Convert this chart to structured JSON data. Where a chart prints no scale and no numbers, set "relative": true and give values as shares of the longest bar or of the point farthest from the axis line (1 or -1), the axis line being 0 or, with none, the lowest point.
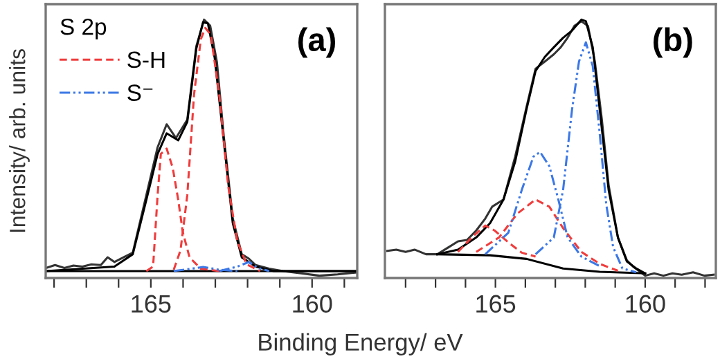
{
  "chart_data": [
    {
      "type": "line",
      "relative": true,
      "ylabel": "Intensity/ arb. units",
      "xlabel": "Binding Energy/ eV",
      "legend_title": "S 2p",
      "legend": "top left",
      "grid": false,
      "tick_labels": "x",
      "xlim": [
        168.26,
        158.6
      ],
      "xticks": [
        {
          "value": 168,
          "label": null
        },
        {
          "value": 167,
          "label": null
        },
        {
          "value": 166,
          "label": null
        },
        165,
        {
          "value": 164,
          "label": null
        },
        {
          "value": 163,
          "label": null
        },
        {
          "value": 162,
          "label": null
        },
        {
          "value": 161,
          "label": null
        },
        160,
        {
          "value": 159,
          "label": null
        }
      ],
      "annotations": [
        "(a)"
      ],
      "series": [
        {
          "color": "#333333",
          "line_style": "solid",
          "x": [
            168.25,
            167.97,
            167.68,
            167.4,
            167.12,
            166.84,
            166.55,
            166.34,
            166.13,
            165.85,
            165.56,
            165.14,
            164.79,
            164.51,
            164.22,
            163.87,
            163.59,
            163.35,
            163.16,
            162.95,
            162.74,
            162.46,
            162.18,
            161.96,
            161.75,
            161.33,
            160.9,
            160.34,
            159.77,
            159.21,
            158.64
          ],
          "values": [
            0.039,
            0.05,
            0.039,
            0.048,
            0.044,
            0.053,
            0.05,
            0.08,
            0.062,
            0.08,
            0.098,
            0.32,
            0.506,
            0.595,
            0.542,
            0.613,
            0.897,
            1.0,
            0.977,
            0.835,
            0.551,
            0.231,
            0.092,
            0.075,
            0.05,
            0.036,
            0.027,
            0.018,
            0.009,
            0.014,
            0.021
          ]
        },
        {
          "color": "#000000",
          "line_style": "solid",
          "x": [
            168.25,
            166.13,
            165.56,
            165.14,
            164.79,
            164.51,
            164.15,
            163.87,
            163.59,
            163.38,
            163.23,
            163.02,
            162.74,
            162.46,
            162.18,
            161.75,
            161.19,
            158.64
          ],
          "values": [
            0.027,
            0.044,
            0.092,
            0.302,
            0.48,
            0.56,
            0.533,
            0.604,
            0.888,
            0.99,
            0.986,
            0.853,
            0.533,
            0.213,
            0.08,
            0.044,
            0.027,
            0.027
          ]
        },
        {
          "color": "#000000",
          "line_style": "solid",
          "x": [
            168.25,
            158.64
          ],
          "values": [
            0.027,
            0.027
          ]
        },
        {
          "name": "S-H",
          "color": "#f03c3c",
          "line_style": "dashed",
          "x": [
            165.14,
            164.93,
            164.79,
            164.69,
            164.51,
            164.32,
            164.15,
            164.01,
            163.8,
            163.45,
            162.88
          ],
          "values": [
            0.027,
            0.044,
            0.32,
            0.48,
            0.501,
            0.426,
            0.302,
            0.178,
            0.08,
            0.036,
            0.027
          ]
        },
        {
          "color": "#f03c3c",
          "line_style": "dashed",
          "x": [
            164.29,
            164.08,
            163.87,
            163.66,
            163.45,
            163.31,
            163.14,
            162.88,
            162.6,
            162.32,
            162.03,
            161.61
          ],
          "values": [
            0.032,
            0.107,
            0.32,
            0.71,
            0.924,
            0.968,
            0.941,
            0.71,
            0.355,
            0.142,
            0.053,
            0.027
          ]
        },
        {
          "name": "S⁻",
          "color": "#3c78e6",
          "line_style": "dashdot",
          "x": [
            164.29,
            163.73,
            163.38,
            162.88,
            162.32
          ],
          "values": [
            0.027,
            0.036,
            0.043,
            0.032,
            0.027
          ]
        },
        {
          "color": "#3c78e6",
          "line_style": "dashdot",
          "x": [
            162.88,
            162.32,
            161.96,
            161.68,
            161.33
          ],
          "values": [
            0.027,
            0.044,
            0.062,
            0.039,
            0.027
          ]
        }
      ]
    },
    {
      "type": "line",
      "relative": true,
      "grid": false,
      "tick_labels": "x",
      "xlim": [
        168.69,
        157.64
      ],
      "xticks": [
        {
          "value": 168,
          "label": null
        },
        {
          "value": 167,
          "label": null
        },
        {
          "value": 166,
          "label": null
        },
        165,
        {
          "value": 164,
          "label": null
        },
        {
          "value": 163,
          "label": null
        },
        {
          "value": 162,
          "label": null
        },
        {
          "value": 161,
          "label": null
        },
        160,
        {
          "value": 159,
          "label": null
        },
        {
          "value": 158,
          "label": null
        }
      ],
      "annotations": [
        "(b)"
      ],
      "series": [
        {
          "color": "#333333",
          "line_style": "solid",
          "x": [
            168.61,
            168.31,
            168.0,
            167.7,
            167.32,
            166.94,
            166.55,
            166.25,
            165.95,
            165.64,
            165.34,
            165.11,
            164.73,
            164.34,
            163.96,
            163.66,
            163.35,
            163.05,
            162.82,
            162.59,
            162.36,
            162.13,
            161.91,
            161.68,
            161.45,
            161.22,
            160.91,
            160.61,
            160.38,
            160.0,
            159.7,
            159.39,
            159.09,
            158.78,
            158.4,
            158.02,
            157.71
          ],
          "values": [
            0.105,
            0.11,
            0.101,
            0.11,
            0.092,
            0.092,
            0.12,
            0.142,
            0.147,
            0.184,
            0.23,
            0.276,
            0.304,
            0.47,
            0.663,
            0.81,
            0.838,
            0.866,
            0.893,
            0.93,
            0.976,
            0.994,
            0.976,
            0.838,
            0.617,
            0.359,
            0.157,
            0.068,
            0.042,
            0.009,
            0.018,
            0.009,
            0.018,
            0.013,
            0.022,
            0.009,
            0.013
          ]
        },
        {
          "color": "#000000",
          "line_style": "solid",
          "x": [
            166.94,
            166.25,
            165.64,
            165.18,
            164.73,
            164.34,
            163.96,
            163.66,
            163.35,
            163.05,
            162.74,
            162.44,
            162.13,
            161.98,
            161.75,
            161.52,
            161.22,
            160.91,
            160.61,
            160.3,
            160.0
          ],
          "values": [
            0.092,
            0.11,
            0.157,
            0.212,
            0.304,
            0.451,
            0.654,
            0.801,
            0.856,
            0.893,
            0.93,
            0.958,
            1.0,
            0.994,
            0.893,
            0.654,
            0.341,
            0.157,
            0.064,
            0.037,
            0.018
          ]
        },
        {
          "color": "#000000",
          "line_style": "solid",
          "x": [
            166.94,
            165.18,
            163.96,
            162.74,
            161.52,
            160.0
          ],
          "values": [
            0.092,
            0.088,
            0.074,
            0.037,
            0.024,
            0.018
          ]
        },
        {
          "color": "#f03c3c",
          "line_style": "dashed",
          "x": [
            166.25,
            165.79,
            165.34,
            165.03,
            164.57,
            164.12,
            163.66
          ],
          "values": [
            0.101,
            0.157,
            0.203,
            0.184,
            0.138,
            0.098,
            0.083
          ]
        },
        {
          "color": "#f03c3c",
          "line_style": "dashed",
          "x": [
            165.64,
            164.88,
            164.27,
            163.66,
            163.2,
            162.74,
            162.13,
            161.52,
            160.91
          ],
          "values": [
            0.101,
            0.157,
            0.249,
            0.304,
            0.276,
            0.193,
            0.101,
            0.055,
            0.028
          ]
        },
        {
          "color": "#3c78e6",
          "line_style": "dashdot",
          "x": [
            165.34,
            164.57,
            164.12,
            163.73,
            163.51,
            163.2,
            162.9,
            162.59,
            162.13,
            161.52
          ],
          "values": [
            0.092,
            0.175,
            0.341,
            0.47,
            0.488,
            0.433,
            0.304,
            0.157,
            0.083,
            0.046
          ]
        },
        {
          "color": "#3c78e6",
          "line_style": "dashdot",
          "x": [
            163.66,
            163.05,
            162.74,
            162.44,
            162.21,
            161.98,
            161.75,
            161.52,
            161.3,
            161.07,
            160.76,
            160.3
          ],
          "values": [
            0.092,
            0.157,
            0.341,
            0.654,
            0.838,
            0.912,
            0.82,
            0.562,
            0.285,
            0.12,
            0.037,
            0.022
          ]
        }
      ]
    }
  ]
}
